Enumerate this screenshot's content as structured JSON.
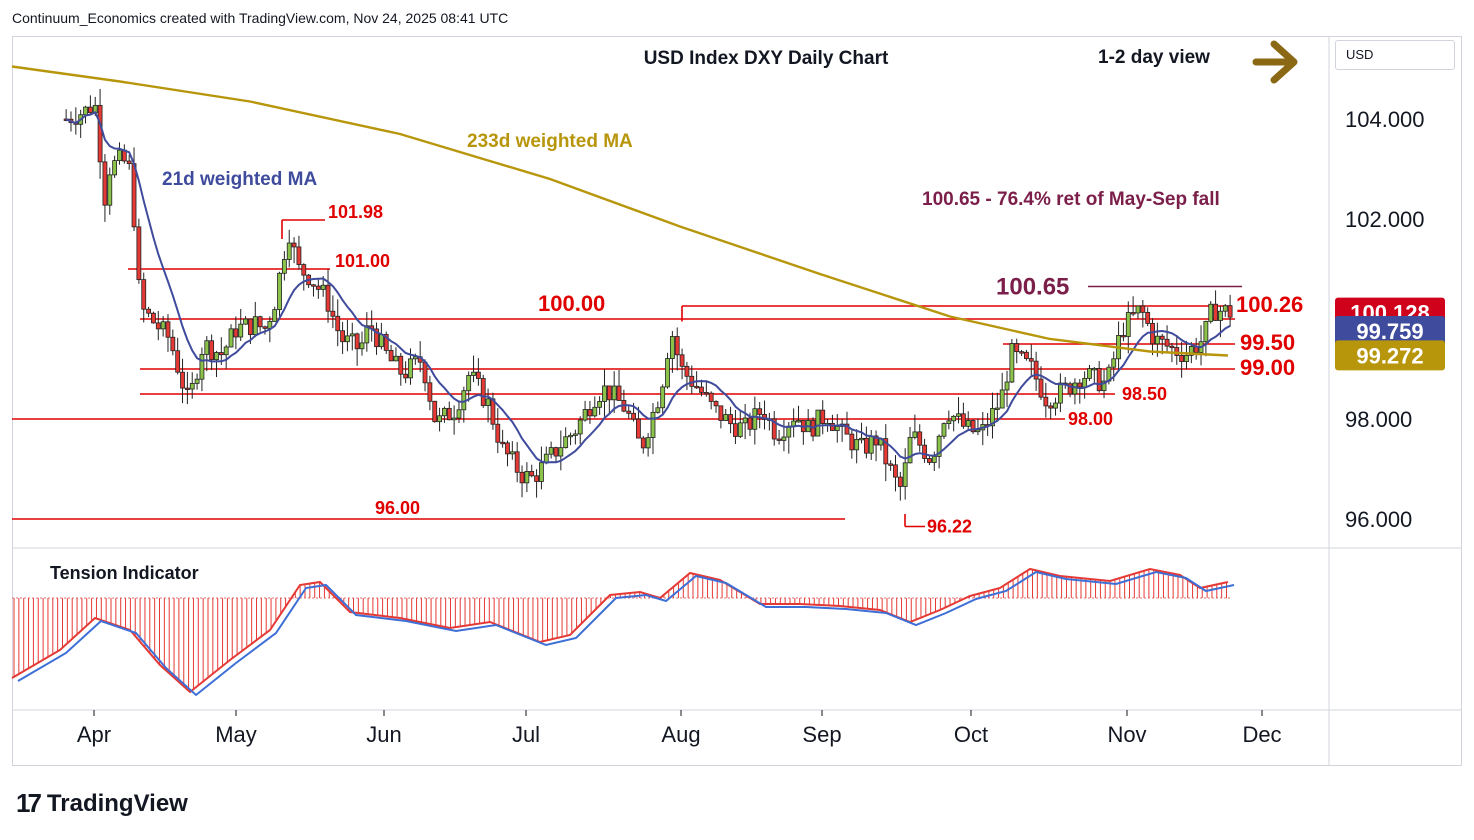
{
  "header": {
    "credit": "Continuum_Economics created with TradingView.com, Nov 24, 2025 08:41 UTC"
  },
  "chart_data": {
    "type": "candlestick",
    "title": "USD Index DXY Daily Chart",
    "view_label": "1-2 day view",
    "currency": "USD",
    "y_axis": {
      "ticks": [
        104,
        102,
        98,
        96
      ],
      "tick_labels": [
        "104.000",
        "102.000",
        "98.000",
        "96.000"
      ],
      "range": [
        95.4,
        105.7
      ]
    },
    "x_axis": {
      "ticks": [
        "Apr",
        "May",
        "Jun",
        "Jul",
        "Aug",
        "Sep",
        "Oct",
        "Nov",
        "Dec"
      ]
    },
    "price_badges": [
      {
        "label": "100.128",
        "value": 100.128,
        "color": "#d0021b"
      },
      {
        "label": "99.759",
        "value": 99.759,
        "color": "#3f4b9c"
      },
      {
        "label": "99.272",
        "value": 99.272,
        "color": "#b8960c"
      }
    ],
    "levels": [
      {
        "label": "101.98",
        "value": 101.98,
        "color": "#e00000"
      },
      {
        "label": "101.00",
        "value": 101.0,
        "color": "#e00000"
      },
      {
        "label": "100.00",
        "value": 100.0,
        "color": "#e00000"
      },
      {
        "label": "100.26",
        "value": 100.26,
        "color": "#e00000"
      },
      {
        "label": "99.50",
        "value": 99.5,
        "color": "#e00000"
      },
      {
        "label": "99.00",
        "value": 99.0,
        "color": "#e00000"
      },
      {
        "label": "98.50",
        "value": 98.5,
        "color": "#e00000"
      },
      {
        "label": "98.00",
        "value": 98.0,
        "color": "#e00000"
      },
      {
        "label": "96.00",
        "value": 96.0,
        "color": "#e00000"
      },
      {
        "label": "96.22",
        "value": 96.22,
        "color": "#e00000"
      },
      {
        "label": "100.65",
        "value": 100.65,
        "color": "#7b1f4a"
      }
    ],
    "annotations": {
      "ma233": "233d weighted MA",
      "ma21": "21d weighted MA",
      "retracement": "100.65 - 76.4% ret of May-Sep fall"
    },
    "series": [
      {
        "name": "21d weighted MA",
        "color": "#3f4b9c"
      },
      {
        "name": "233d weighted MA",
        "color": "#b8960c"
      }
    ],
    "close_path": [
      [
        "Mar 26",
        104.0
      ],
      [
        "Mar 31",
        104.2
      ],
      [
        "Apr 1",
        104.4
      ],
      [
        "Apr 2",
        103.8
      ],
      [
        "Apr 3",
        102.2
      ],
      [
        "Apr 4",
        103.0
      ],
      [
        "Apr 7",
        103.2
      ],
      [
        "Apr 9",
        102.9
      ],
      [
        "Apr 10",
        101.0
      ],
      [
        "Apr 11",
        100.2
      ],
      [
        "Apr 15",
        99.8
      ],
      [
        "Apr 17",
        99.6
      ],
      [
        "Apr 21",
        98.3
      ],
      [
        "Apr 24",
        99.5
      ],
      [
        "Apr 28",
        99.3
      ],
      [
        "May 1",
        99.8
      ],
      [
        "May 5",
        99.9
      ],
      [
        "May 7",
        99.8
      ],
      [
        "May 9",
        100.3
      ],
      [
        "May 12",
        101.8
      ],
      [
        "May 14",
        101.0
      ],
      [
        "May 16",
        100.9
      ],
      [
        "May 20",
        100.4
      ],
      [
        "May 23",
        99.6
      ],
      [
        "May 27",
        99.4
      ],
      [
        "May 29",
        99.9
      ],
      [
        "Jun 2",
        99.2
      ],
      [
        "Jun 5",
        98.9
      ],
      [
        "Jun 9",
        99.2
      ],
      [
        "Jun 12",
        97.9
      ],
      [
        "Jun 16",
        98.2
      ],
      [
        "Jun 19",
        98.9
      ],
      [
        "Jun 23",
        98.3
      ],
      [
        "Jun 26",
        97.4
      ],
      [
        "Jun 30",
        96.9
      ],
      [
        "Jul 2",
        96.8
      ],
      [
        "Jul 4",
        97.0
      ],
      [
        "Jul 8",
        97.5
      ],
      [
        "Jul 11",
        97.8
      ],
      [
        "Jul 15",
        98.5
      ],
      [
        "Jul 17",
        98.6
      ],
      [
        "Jul 21",
        98.2
      ],
      [
        "Jul 24",
        97.4
      ],
      [
        "Jul 28",
        98.6
      ],
      [
        "Jul 30",
        99.8
      ],
      [
        "Aug 1",
        99.0
      ],
      [
        "Aug 5",
        98.6
      ],
      [
        "Aug 8",
        98.2
      ],
      [
        "Aug 12",
        97.9
      ],
      [
        "Aug 15",
        97.8
      ],
      [
        "Aug 19",
        98.2
      ],
      [
        "Aug 22",
        97.7
      ],
      [
        "Aug 26",
        98.1
      ],
      [
        "Aug 29",
        97.8
      ],
      [
        "Sep 2",
        98.1
      ],
      [
        "Sep 5",
        97.7
      ],
      [
        "Sep 9",
        97.4
      ],
      [
        "Sep 12",
        97.6
      ],
      [
        "Sep 16",
        96.7
      ],
      [
        "Sep 17",
        96.6
      ],
      [
        "Sep 19",
        97.7
      ],
      [
        "Sep 23",
        97.2
      ],
      [
        "Sep 26",
        98.2
      ],
      [
        "Sep 30",
        97.8
      ],
      [
        "Oct 3",
        97.7
      ],
      [
        "Oct 7",
        98.4
      ],
      [
        "Oct 9",
        99.3
      ],
      [
        "Oct 13",
        99.0
      ],
      [
        "Oct 16",
        98.4
      ],
      [
        "Oct 20",
        98.6
      ],
      [
        "Oct 23",
        98.9
      ],
      [
        "Oct 28",
        98.7
      ],
      [
        "Oct 31",
        99.8
      ],
      [
        "Nov 4",
        100.2
      ],
      [
        "Nov 7",
        99.6
      ],
      [
        "Nov 11",
        99.4
      ],
      [
        "Nov 14",
        99.3
      ],
      [
        "Nov 18",
        99.6
      ],
      [
        "Nov 20",
        100.2
      ],
      [
        "Nov 24",
        100.13
      ]
    ],
    "indicator": {
      "title": "Tension Indicator"
    }
  }
}
